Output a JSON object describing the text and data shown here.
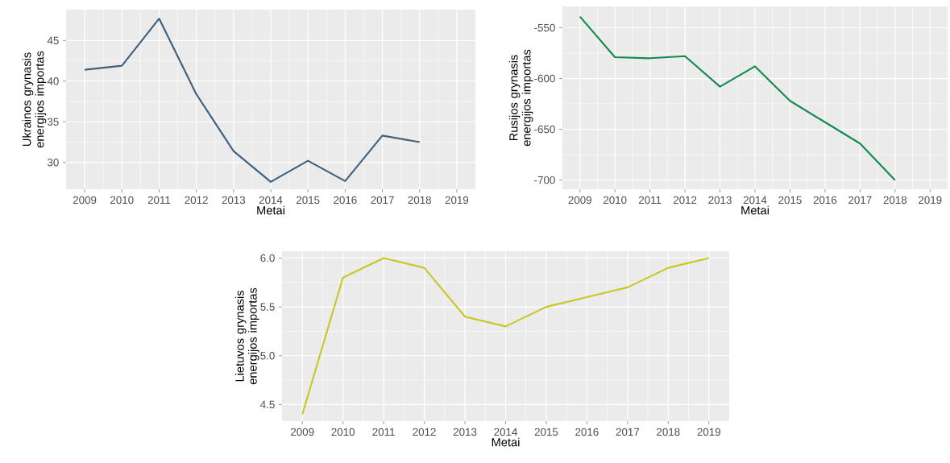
{
  "chart_data": [
    {
      "type": "line",
      "x": [
        2009,
        2010,
        2011,
        2012,
        2013,
        2014,
        2015,
        2016,
        2017,
        2018
      ],
      "xlim": [
        2008.5,
        2019.5
      ],
      "xticks": [
        2009,
        2010,
        2011,
        2012,
        2013,
        2014,
        2015,
        2016,
        2017,
        2018,
        2019
      ],
      "ylim": [
        26.7,
        48.8
      ],
      "yticks": [
        30,
        35,
        40,
        45
      ],
      "xlabel": "Metai",
      "ylabel": "Ukrainos grynasis energijos importas",
      "grid": true,
      "series": [
        {
          "color": "#41607e",
          "values": [
            41.4,
            41.9,
            47.7,
            38.4,
            31.4,
            27.6,
            30.2,
            27.7,
            33.3,
            32.5
          ]
        }
      ]
    },
    {
      "type": "line",
      "x": [
        2009,
        2010,
        2011,
        2012,
        2013,
        2014,
        2015,
        2016,
        2017,
        2018
      ],
      "xlim": [
        2008.5,
        2019.5
      ],
      "xticks": [
        2009,
        2010,
        2011,
        2012,
        2013,
        2014,
        2015,
        2016,
        2017,
        2018,
        2019
      ],
      "ylim": [
        -709,
        -529
      ],
      "yticks": [
        -700,
        -650,
        -600,
        -550
      ],
      "xlabel": "Metai",
      "ylabel": "Rusijos grynasis energijos importas",
      "grid": true,
      "series": [
        {
          "color": "#138a4f",
          "values": [
            -539,
            -579,
            -580,
            -578,
            -608,
            -588,
            -622,
            -643,
            -664,
            -700
          ]
        }
      ]
    },
    {
      "type": "line",
      "x": [
        2009,
        2010,
        2011,
        2012,
        2013,
        2014,
        2015,
        2016,
        2017,
        2018,
        2019
      ],
      "xlim": [
        2008.5,
        2019.5
      ],
      "xticks": [
        2009,
        2010,
        2011,
        2012,
        2013,
        2014,
        2015,
        2016,
        2017,
        2018,
        2019
      ],
      "ylim": [
        4.33,
        6.07
      ],
      "yticks": [
        {
          "value": 4.5,
          "label": "4.5"
        },
        {
          "value": 5.0,
          "label": "5.0"
        },
        {
          "value": 5.5,
          "label": "5.5"
        },
        {
          "value": 6.0,
          "label": "6.0"
        }
      ],
      "xlabel": "Metai",
      "ylabel": "Lietuvos grynasis energijos importas",
      "grid": true,
      "series": [
        {
          "color": "#c8c820",
          "values": [
            4.4,
            5.8,
            6.0,
            5.9,
            5.4,
            5.3,
            5.5,
            5.6,
            5.7,
            5.9,
            6.0
          ]
        }
      ]
    }
  ]
}
